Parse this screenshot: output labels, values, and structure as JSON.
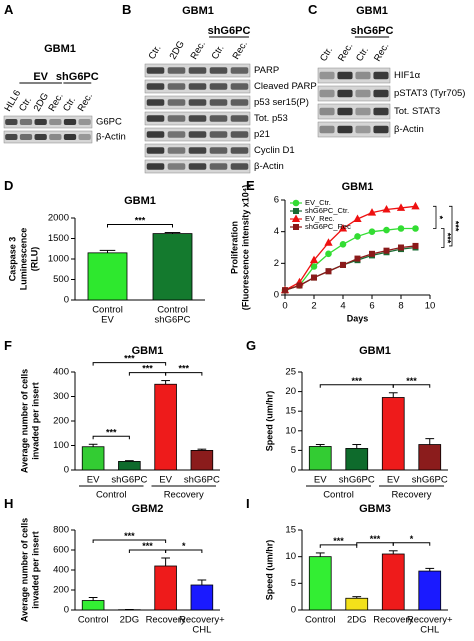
{
  "blots": [
    {
      "panel": "A",
      "title": "GBM1",
      "lanes": [
        "HLL6",
        "Ctr.",
        "2DG",
        "Rec.",
        "Ctr.",
        "Rec."
      ],
      "groups": [
        {
          "name": "EV",
          "first": 1,
          "last": 3
        },
        {
          "name": "shG6PC",
          "first": 4,
          "last": 5
        }
      ],
      "rows": [
        "G6PC",
        "β-Actin"
      ]
    },
    {
      "panel": "B",
      "title": "GBM1",
      "lanes": [
        "Ctr.",
        "2DG",
        "Rec.",
        "Ctr.",
        "Rec."
      ],
      "groups": [
        {
          "name": "shG6PC",
          "first": 3,
          "last": 4
        }
      ],
      "rows": [
        "PARP",
        "Cleaved PARP",
        "p53 ser15(P)",
        "Tot. p53",
        "p21",
        "Cyclin D1",
        "β-Actin"
      ]
    },
    {
      "panel": "C",
      "title": "GBM1",
      "lanes": [
        "Ctr.",
        "Rec.",
        "Ctr.",
        "Rec."
      ],
      "groups": [
        {
          "name": "shG6PC",
          "first": 2,
          "last": 3
        }
      ],
      "rows": [
        "HIF1α",
        "pSTAT3 (Tyr705)",
        "Tot. STAT3",
        "β-Actin"
      ]
    }
  ],
  "chart_data": [
    {
      "panel": "D",
      "type": "bar",
      "title": "GBM1",
      "ylabel": [
        "Caspase 3",
        "Luminescence",
        "(RLU)"
      ],
      "categories": [
        [
          "Control",
          "EV"
        ],
        [
          "Control",
          "shG6PC"
        ]
      ],
      "values": [
        1150,
        1620
      ],
      "errors": [
        60,
        25
      ],
      "colors": [
        "#2ee82e",
        "#147a2e"
      ],
      "ylim": [
        0,
        2000
      ],
      "yticks": [
        0,
        500,
        1000,
        1500,
        2000
      ],
      "significance": [
        {
          "from": 0,
          "to": 1,
          "label": "***"
        }
      ]
    },
    {
      "panel": "E",
      "type": "line",
      "title": "GBM1",
      "ylabel": [
        "Proliferation",
        "(Fluorescence intensity x10⁴)"
      ],
      "xlabel": "Days",
      "x": [
        0,
        1,
        2,
        3,
        4,
        5,
        6,
        7,
        8,
        9
      ],
      "series": [
        {
          "name": "EV_Ctr.",
          "color": "#33dd33",
          "marker": "circle",
          "values": [
            0.3,
            0.6,
            1.8,
            2.6,
            3.2,
            3.7,
            4.0,
            4.1,
            4.2,
            4.2
          ]
        },
        {
          "name": "shG6PC_Ctr.",
          "color": "#1a6b33",
          "marker": "square",
          "values": [
            0.3,
            0.6,
            1.1,
            1.5,
            1.9,
            2.2,
            2.5,
            2.7,
            2.9,
            3.0
          ]
        },
        {
          "name": "EV_Rec.",
          "color": "#ee1111",
          "marker": "triangle",
          "values": [
            0.3,
            0.8,
            2.2,
            3.3,
            4.2,
            4.8,
            5.2,
            5.4,
            5.5,
            5.6
          ]
        },
        {
          "name": "shG6PC_Rec",
          "color": "#8b1a1a",
          "marker": "square",
          "values": [
            0.3,
            0.6,
            1.1,
            1.5,
            1.9,
            2.3,
            2.6,
            2.8,
            3.0,
            3.1
          ]
        }
      ],
      "xlim": [
        0,
        10
      ],
      "xticks": [
        0,
        2,
        4,
        6,
        8,
        10
      ],
      "ylim": [
        0,
        6
      ],
      "yticks": [
        0,
        2,
        4,
        6
      ],
      "legend": "upper left",
      "significance": [
        {
          "from": 2,
          "to": 0,
          "label": "*"
        },
        {
          "from": 0,
          "to": 1,
          "label": "***"
        },
        {
          "from": 2,
          "to": 3,
          "label": "***"
        }
      ]
    },
    {
      "panel": "F",
      "type": "bar",
      "title": "GBM1",
      "ylabel": [
        "Average number of cells",
        "invaded per insert"
      ],
      "categories": [
        [
          "EV"
        ],
        [
          "shG6PC"
        ],
        [
          "EV"
        ],
        [
          "shG6PC"
        ]
      ],
      "groups": [
        "Control",
        "Recovery"
      ],
      "values": [
        95,
        35,
        350,
        80
      ],
      "errors": [
        10,
        3,
        15,
        5
      ],
      "colors": [
        "#33cc33",
        "#0e6b2c",
        "#ee1b1b",
        "#8b1c1c"
      ],
      "ylim": [
        0,
        400
      ],
      "yticks": [
        0,
        100,
        200,
        300,
        400
      ],
      "significance": [
        {
          "from": 0,
          "to": 1,
          "label": "***"
        },
        {
          "from": 1,
          "to": 2,
          "label": "***"
        },
        {
          "from": 2,
          "to": 3,
          "label": "***"
        },
        {
          "from": 0,
          "to": 2,
          "label": "***"
        }
      ]
    },
    {
      "panel": "G",
      "type": "bar",
      "title": "GBM1",
      "ylabel": [
        "Speed (um/hr)"
      ],
      "categories": [
        [
          "EV"
        ],
        [
          "shG6PC"
        ],
        [
          "EV"
        ],
        [
          "shG6PC"
        ]
      ],
      "groups": [
        "Control",
        "Recovery"
      ],
      "values": [
        6,
        5.5,
        18.5,
        6.5
      ],
      "errors": [
        0.5,
        1,
        1.2,
        1.5
      ],
      "colors": [
        "#33cc33",
        "#0e6b2c",
        "#ee1b1b",
        "#8b1c1c"
      ],
      "ylim": [
        0,
        25
      ],
      "yticks": [
        0,
        5,
        10,
        15,
        20,
        25
      ],
      "significance": [
        {
          "from": 0,
          "to": 2,
          "label": "***"
        },
        {
          "from": 2,
          "to": 3,
          "label": "***"
        }
      ]
    },
    {
      "panel": "H",
      "type": "bar",
      "title": "GBM2",
      "ylabel": [
        "Average number of cells",
        "invaded per insert"
      ],
      "categories": [
        [
          "Control"
        ],
        [
          "2DG"
        ],
        [
          "Recovery"
        ],
        [
          "Recovery+",
          "CHL"
        ]
      ],
      "values": [
        95,
        3,
        440,
        250
      ],
      "errors": [
        30,
        2,
        80,
        50
      ],
      "colors": [
        "#33ee33",
        "#f3e11a",
        "#ee1b1b",
        "#1a1aff"
      ],
      "ylim": [
        0,
        800
      ],
      "yticks": [
        0,
        200,
        400,
        600,
        800
      ],
      "significance": [
        {
          "from": 1,
          "to": 2,
          "label": "***"
        },
        {
          "from": 2,
          "to": 3,
          "label": "*"
        },
        {
          "from": 0,
          "to": 2,
          "label": "***"
        }
      ]
    },
    {
      "panel": "I",
      "type": "bar",
      "title": "GBM3",
      "ylabel": [
        "Speed (um/hr)"
      ],
      "categories": [
        [
          "Control"
        ],
        [
          "2DG"
        ],
        [
          "Recovery"
        ],
        [
          "Recovery+",
          "CHL"
        ]
      ],
      "values": [
        10,
        2.2,
        10.5,
        7.3
      ],
      "errors": [
        0.7,
        0.3,
        0.6,
        0.5
      ],
      "colors": [
        "#33ee33",
        "#f3e11a",
        "#ee1b1b",
        "#1a1aff"
      ],
      "ylim": [
        0,
        15
      ],
      "yticks": [
        0,
        5,
        10,
        15
      ],
      "significance": [
        {
          "from": 0,
          "to": 1,
          "label": "***"
        },
        {
          "from": 1,
          "to": 2,
          "label": "***"
        },
        {
          "from": 2,
          "to": 3,
          "label": "*"
        }
      ]
    }
  ]
}
